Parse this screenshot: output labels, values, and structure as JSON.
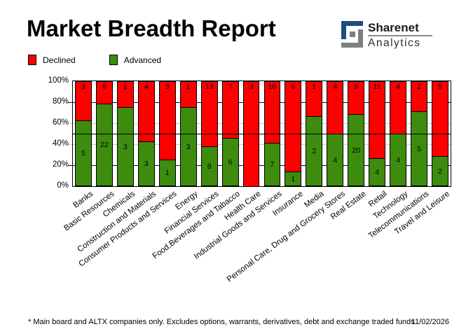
{
  "header": {
    "title": "Market Breadth Report",
    "logo": {
      "name": "Sharenet Analytics",
      "line1": "Sharenet",
      "line2": "Analytics",
      "blue": "#1f4e79",
      "gray": "#7f7f7f"
    }
  },
  "legend": {
    "items": [
      {
        "label": "Declined",
        "color": "#ff0000"
      },
      {
        "label": "Advanced",
        "color": "#3e8c0e"
      }
    ]
  },
  "chart_data": {
    "type": "bar",
    "stacked": true,
    "normalized": "percent-of-total",
    "title": "Market Breadth Report",
    "xlabel": "",
    "ylabel": "",
    "ylim": [
      0,
      100
    ],
    "legend_position": "top-left",
    "categories": [
      "Banks",
      "Basic Resources",
      "Chemicals",
      "Construction and Materials",
      "Consumer Products and Services",
      "Energy",
      "Financial Services",
      "Food,Beverages and Tabacco",
      "Health Care",
      "Industrial Goods and Services",
      "Insurance",
      "Media",
      "Personal Care, Drug and Grocery Stores",
      "Real Estate",
      "Retail",
      "Technology",
      "Telecommunications",
      "Travel and Leisure"
    ],
    "series": [
      {
        "name": "Declined",
        "color": "#ff0000",
        "values": [
          3,
          6,
          1,
          4,
          3,
          1,
          13,
          7,
          3,
          10,
          6,
          1,
          4,
          9,
          11,
          4,
          2,
          5
        ]
      },
      {
        "name": "Advanced",
        "color": "#3e8c0e",
        "values": [
          5,
          22,
          3,
          3,
          1,
          3,
          8,
          6,
          0,
          7,
          1,
          2,
          4,
          20,
          4,
          4,
          5,
          2
        ]
      }
    ],
    "yticks": [
      {
        "label": "100%",
        "value": 100
      },
      {
        "label": "80%",
        "value": 80
      },
      {
        "label": "60%",
        "value": 60
      },
      {
        "label": "40%",
        "value": 40
      },
      {
        "label": "20%",
        "value": 20
      },
      {
        "label": "0%",
        "value": 0
      }
    ],
    "gridlines": [
      {
        "value": 80,
        "color": "#000080",
        "over_bars": false
      },
      {
        "value": 60,
        "color": "#c8c8c8",
        "over_bars": false
      },
      {
        "value": 50,
        "color": "#000000",
        "over_bars": true
      },
      {
        "value": 40,
        "color": "#c8c8c8",
        "over_bars": false
      },
      {
        "value": 20,
        "color": "#000080",
        "over_bars": false
      }
    ]
  },
  "footer": {
    "note": "* Main board and ALTX companies only. Excludes options, warrants, derivatives, debt and exchange traded funds",
    "date": "11/02/2026"
  }
}
